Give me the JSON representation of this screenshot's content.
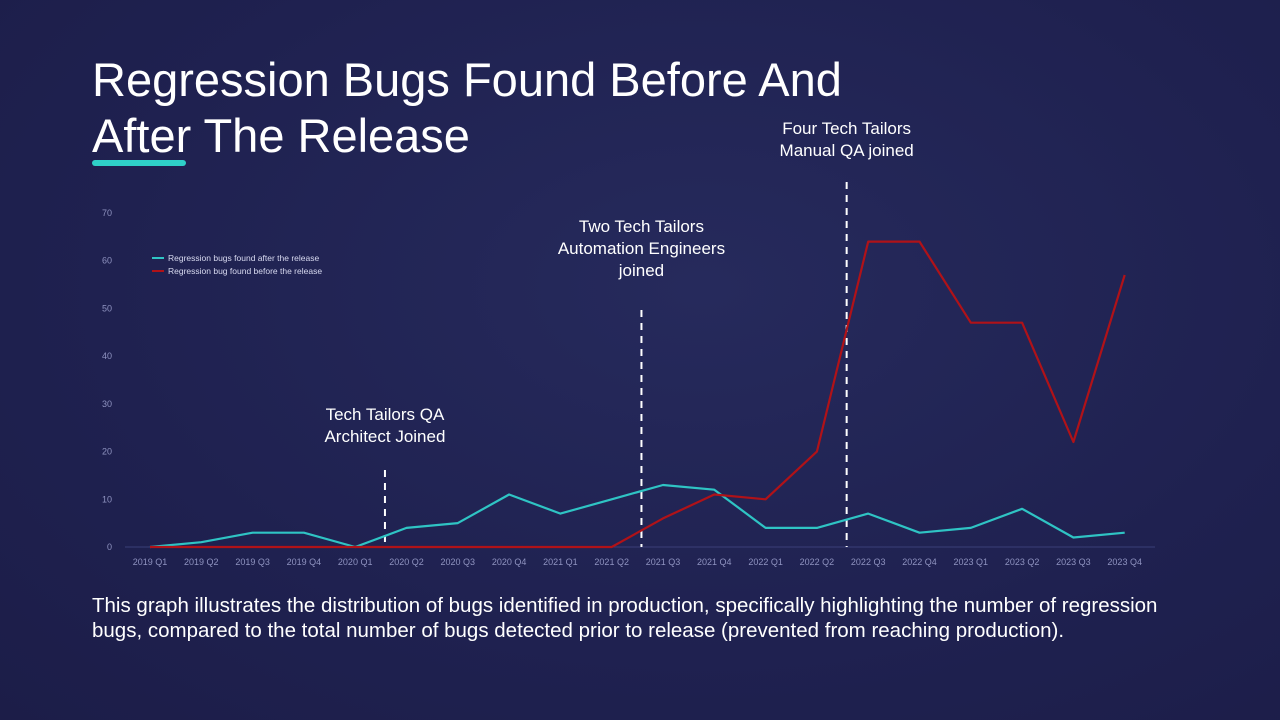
{
  "slide": {
    "title": "Regression Bugs Found Before And After The Release",
    "caption": "This graph illustrates the distribution of bugs identified in production, specifically highlighting the number of regression bugs, compared to the total number of bugs detected prior to release (prevented from reaching production).",
    "accent_color": "#2fd0c8",
    "background_color": "#202050"
  },
  "annotations": [
    {
      "text": "Tech Tailors QA\nArchitect Joined",
      "category": "2020 Q1"
    },
    {
      "text": "Two Tech Tailors\nAutomation Engineers\njoined",
      "category": "2021 Q2"
    },
    {
      "text": "Four Tech Tailors\nManual QA joined",
      "category": "2022 Q2"
    }
  ],
  "chart_data": {
    "type": "line",
    "title": "",
    "xlabel": "",
    "ylabel": "",
    "categories": [
      "2019 Q1",
      "2019 Q2",
      "2019 Q3",
      "2019 Q4",
      "2020 Q1",
      "2020 Q2",
      "2020 Q3",
      "2020 Q4",
      "2021 Q1",
      "2021 Q2",
      "2021 Q3",
      "2021 Q4",
      "2022 Q1",
      "2022 Q2",
      "2022 Q3",
      "2022 Q4",
      "2023 Q1",
      "2023 Q2",
      "2023 Q3",
      "2023 Q4"
    ],
    "ylim": [
      0,
      70
    ],
    "yticks": [
      0,
      10,
      20,
      30,
      40,
      50,
      60,
      70
    ],
    "grid": false,
    "legend_position": "top-left",
    "series": [
      {
        "name": "Regression bugs found after the release",
        "color": "#2fc4c4",
        "values": [
          0,
          1,
          3,
          3,
          0,
          4,
          5,
          11,
          7,
          10,
          13,
          12,
          4,
          4,
          7,
          3,
          4,
          8,
          2,
          3
        ]
      },
      {
        "name": "Regression bug found before the release",
        "color": "#b01218",
        "values": [
          0,
          0,
          0,
          0,
          0,
          0,
          0,
          0,
          0,
          0,
          6,
          11,
          10,
          20,
          64,
          64,
          47,
          47,
          22,
          57
        ]
      }
    ]
  }
}
